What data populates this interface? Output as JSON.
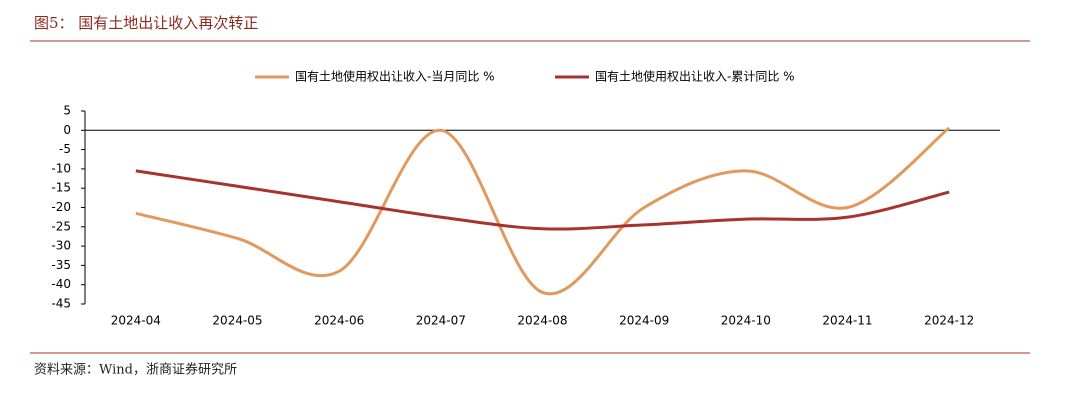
{
  "chart_data": {
    "type": "line",
    "title": "图5： 国有土地出让收入再次转正",
    "source": "资料来源：Wind，浙商证券研究所",
    "categories": [
      "2024-04",
      "2024-05",
      "2024-06",
      "2024-07",
      "2024-08",
      "2024-09",
      "2024-10",
      "2024-11",
      "2024-12"
    ],
    "series": [
      {
        "name": "国有土地使用权出让收入-当月同比 %",
        "color": "#e09a5e",
        "values": [
          -21.5,
          -28,
          -36.5,
          0,
          -42,
          -20,
          -10.5,
          -20,
          0.6
        ]
      },
      {
        "name": "国有土地使用权出让收入-累计同比 %",
        "color": "#a8322d",
        "values": [
          -10.5,
          -14.5,
          -18.5,
          -22.5,
          -25.5,
          -24.5,
          -23,
          -22.5,
          -16
        ]
      }
    ],
    "ylim": [
      -45,
      5
    ],
    "yticks": [
      5,
      0,
      -5,
      -10,
      -15,
      -20,
      -25,
      -30,
      -35,
      -40,
      -45
    ],
    "smooth": true
  }
}
